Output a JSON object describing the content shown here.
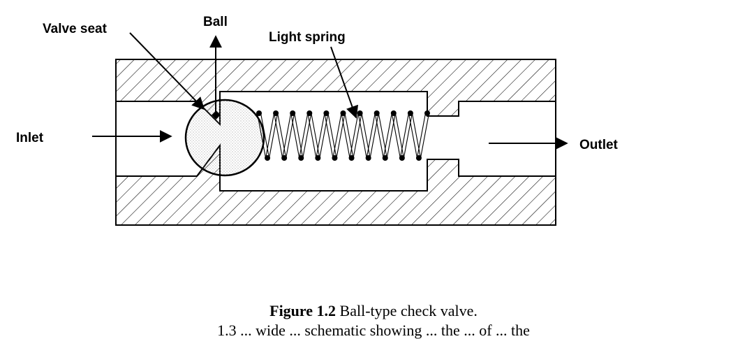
{
  "diagram": {
    "labels": {
      "valve_seat": "Valve seat",
      "ball": "Ball",
      "light_spring": "Light spring",
      "inlet": "Inlet",
      "outlet": "Outlet"
    },
    "spring": {
      "coils": 10
    }
  },
  "caption": {
    "number": "Figure 1.2",
    "text": " Ball-type check valve."
  },
  "cut_text": "1.3 ... wide ... schematic showing ... the ... of ... the"
}
